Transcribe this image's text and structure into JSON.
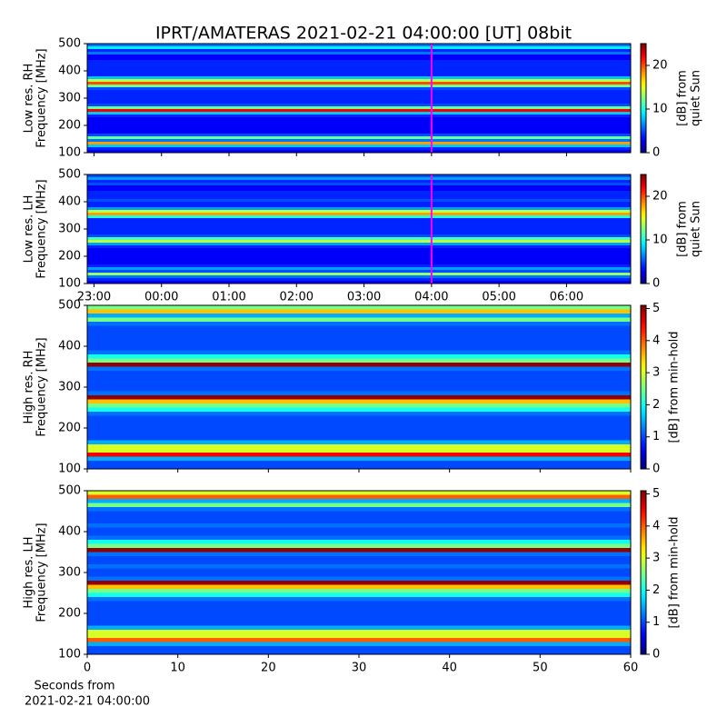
{
  "figure_title": "IPRT/AMATERAS 2021-02-21 04:00:00 [UT]   08bit",
  "chart_data": [
    {
      "type": "heatmap",
      "ylabel": [
        "Low res. RH",
        "Frequency [MHz]"
      ],
      "ylim": [
        100,
        500
      ],
      "yticks": [
        100,
        200,
        300,
        400,
        500
      ],
      "xlim": [
        22.9,
        30.95
      ],
      "xticks": [
        23,
        24,
        25,
        26,
        27,
        28,
        29,
        30
      ],
      "show_xtick_labels": false,
      "marker": {
        "value": 28,
        "color": "#ff00ff"
      },
      "ybins": [
        100,
        110,
        120,
        130,
        140,
        150,
        160,
        170,
        180,
        190,
        200,
        210,
        220,
        230,
        240,
        250,
        260,
        270,
        280,
        290,
        300,
        310,
        320,
        330,
        340,
        350,
        360,
        370,
        380,
        390,
        400,
        410,
        420,
        430,
        440,
        450,
        460,
        470,
        480,
        490,
        500
      ],
      "values": [
        3,
        4,
        8,
        18,
        6,
        12,
        5,
        3,
        3,
        3,
        3,
        3,
        3,
        4,
        8,
        22,
        12,
        5,
        4,
        4,
        4,
        4,
        4,
        5,
        12,
        20,
        14,
        8,
        4,
        4,
        4,
        4,
        4,
        4,
        3,
        3,
        6,
        4,
        9,
        6
      ],
      "colormap": "jet",
      "clim": [
        0,
        25
      ],
      "cticks": [
        0,
        10,
        20
      ],
      "clabel": [
        "[dB] from",
        "quiet Sun"
      ]
    },
    {
      "type": "heatmap",
      "ylabel": [
        "Low res. LH",
        "Frequency [MHz]"
      ],
      "ylim": [
        100,
        500
      ],
      "yticks": [
        100,
        200,
        300,
        400,
        500
      ],
      "xlim": [
        22.9,
        30.95
      ],
      "xticks": [
        {
          "value": 23,
          "label": "23:00"
        },
        {
          "value": 24,
          "label": "00:00"
        },
        {
          "value": 25,
          "label": "01:00"
        },
        {
          "value": 26,
          "label": "02:00"
        },
        {
          "value": 27,
          "label": "03:00"
        },
        {
          "value": 28,
          "label": "04:00"
        },
        {
          "value": 29,
          "label": "05:00"
        },
        {
          "value": 30,
          "label": "06:00"
        }
      ],
      "show_xtick_labels": true,
      "marker": {
        "value": 28,
        "color": "#ff00ff"
      },
      "ybins": [
        100,
        110,
        120,
        130,
        140,
        150,
        160,
        170,
        180,
        190,
        200,
        210,
        220,
        230,
        240,
        250,
        260,
        270,
        280,
        290,
        300,
        310,
        320,
        330,
        340,
        350,
        360,
        370,
        380,
        390,
        400,
        410,
        420,
        430,
        440,
        450,
        460,
        470,
        480,
        490,
        500
      ],
      "values": [
        3,
        4,
        6,
        13,
        5,
        7,
        4,
        3,
        3,
        3,
        3,
        3,
        3,
        4,
        7,
        14,
        11,
        5,
        4,
        4,
        4,
        4,
        4,
        4,
        10,
        18,
        14,
        7,
        4,
        4,
        5,
        4,
        4,
        4,
        3,
        3,
        5,
        4,
        7,
        5
      ],
      "colormap": "jet",
      "clim": [
        0,
        25
      ],
      "cticks": [
        0,
        10,
        20
      ],
      "clabel": [
        "[dB] from",
        "quiet Sun"
      ]
    },
    {
      "type": "heatmap",
      "ylabel": [
        "High res. RH",
        "Frequency [MHz]"
      ],
      "ylim": [
        100,
        500
      ],
      "yticks": [
        100,
        200,
        300,
        400,
        500
      ],
      "xlim": [
        0,
        60
      ],
      "xticks": [
        0,
        10,
        20,
        30,
        40,
        50,
        60
      ],
      "show_xtick_labels": false,
      "ybins": [
        100,
        110,
        120,
        130,
        140,
        150,
        160,
        170,
        180,
        190,
        200,
        210,
        220,
        230,
        240,
        250,
        260,
        270,
        280,
        290,
        300,
        310,
        320,
        330,
        340,
        350,
        360,
        370,
        380,
        390,
        400,
        410,
        420,
        430,
        440,
        450,
        460,
        470,
        480,
        490,
        500
      ],
      "values": [
        1,
        1,
        1.5,
        4.5,
        3,
        3,
        1.5,
        1,
        1,
        1,
        1,
        1,
        1,
        1.2,
        2,
        2.5,
        3.5,
        5,
        1.2,
        1,
        1,
        1,
        1,
        1,
        1.2,
        5,
        2.5,
        2,
        1.2,
        1,
        1,
        1,
        1,
        1,
        1,
        1.2,
        2.5,
        1.5,
        3.5,
        2.5
      ],
      "colormap": "jet",
      "clim": [
        0,
        5.1
      ],
      "cticks": [
        0,
        1,
        2,
        3,
        4,
        5
      ],
      "clabel": [
        "[dB] from min-hold"
      ]
    },
    {
      "type": "heatmap",
      "ylabel": [
        "High res. LH",
        "Frequency [MHz]"
      ],
      "ylim": [
        100,
        500
      ],
      "yticks": [
        100,
        200,
        300,
        400,
        500
      ],
      "xlim": [
        0,
        60
      ],
      "xticks": [
        0,
        10,
        20,
        30,
        40,
        50,
        60
      ],
      "show_xtick_labels": true,
      "xlabel": [
        "Seconds from",
        "2021-02-21 04:00:00"
      ],
      "ybins": [
        100,
        110,
        120,
        130,
        140,
        150,
        160,
        170,
        180,
        190,
        200,
        210,
        220,
        230,
        240,
        250,
        260,
        270,
        280,
        290,
        300,
        310,
        320,
        330,
        340,
        350,
        360,
        370,
        380,
        390,
        400,
        410,
        420,
        430,
        440,
        450,
        460,
        470,
        480,
        490,
        500
      ],
      "values": [
        1,
        1,
        1.5,
        4,
        3,
        3,
        1.5,
        1,
        1,
        1,
        1,
        1,
        1,
        1.2,
        2,
        2.5,
        3.5,
        5,
        1.2,
        1,
        1,
        1.2,
        1,
        1,
        1.2,
        5,
        2.5,
        2,
        1.2,
        1,
        1,
        1.2,
        1,
        1,
        1,
        1.2,
        2.5,
        1.5,
        4,
        3
      ],
      "colormap": "jet",
      "clim": [
        0,
        5.1
      ],
      "cticks": [
        0,
        1,
        2,
        3,
        4,
        5
      ],
      "clabel": [
        "[dB] from min-hold"
      ]
    }
  ]
}
